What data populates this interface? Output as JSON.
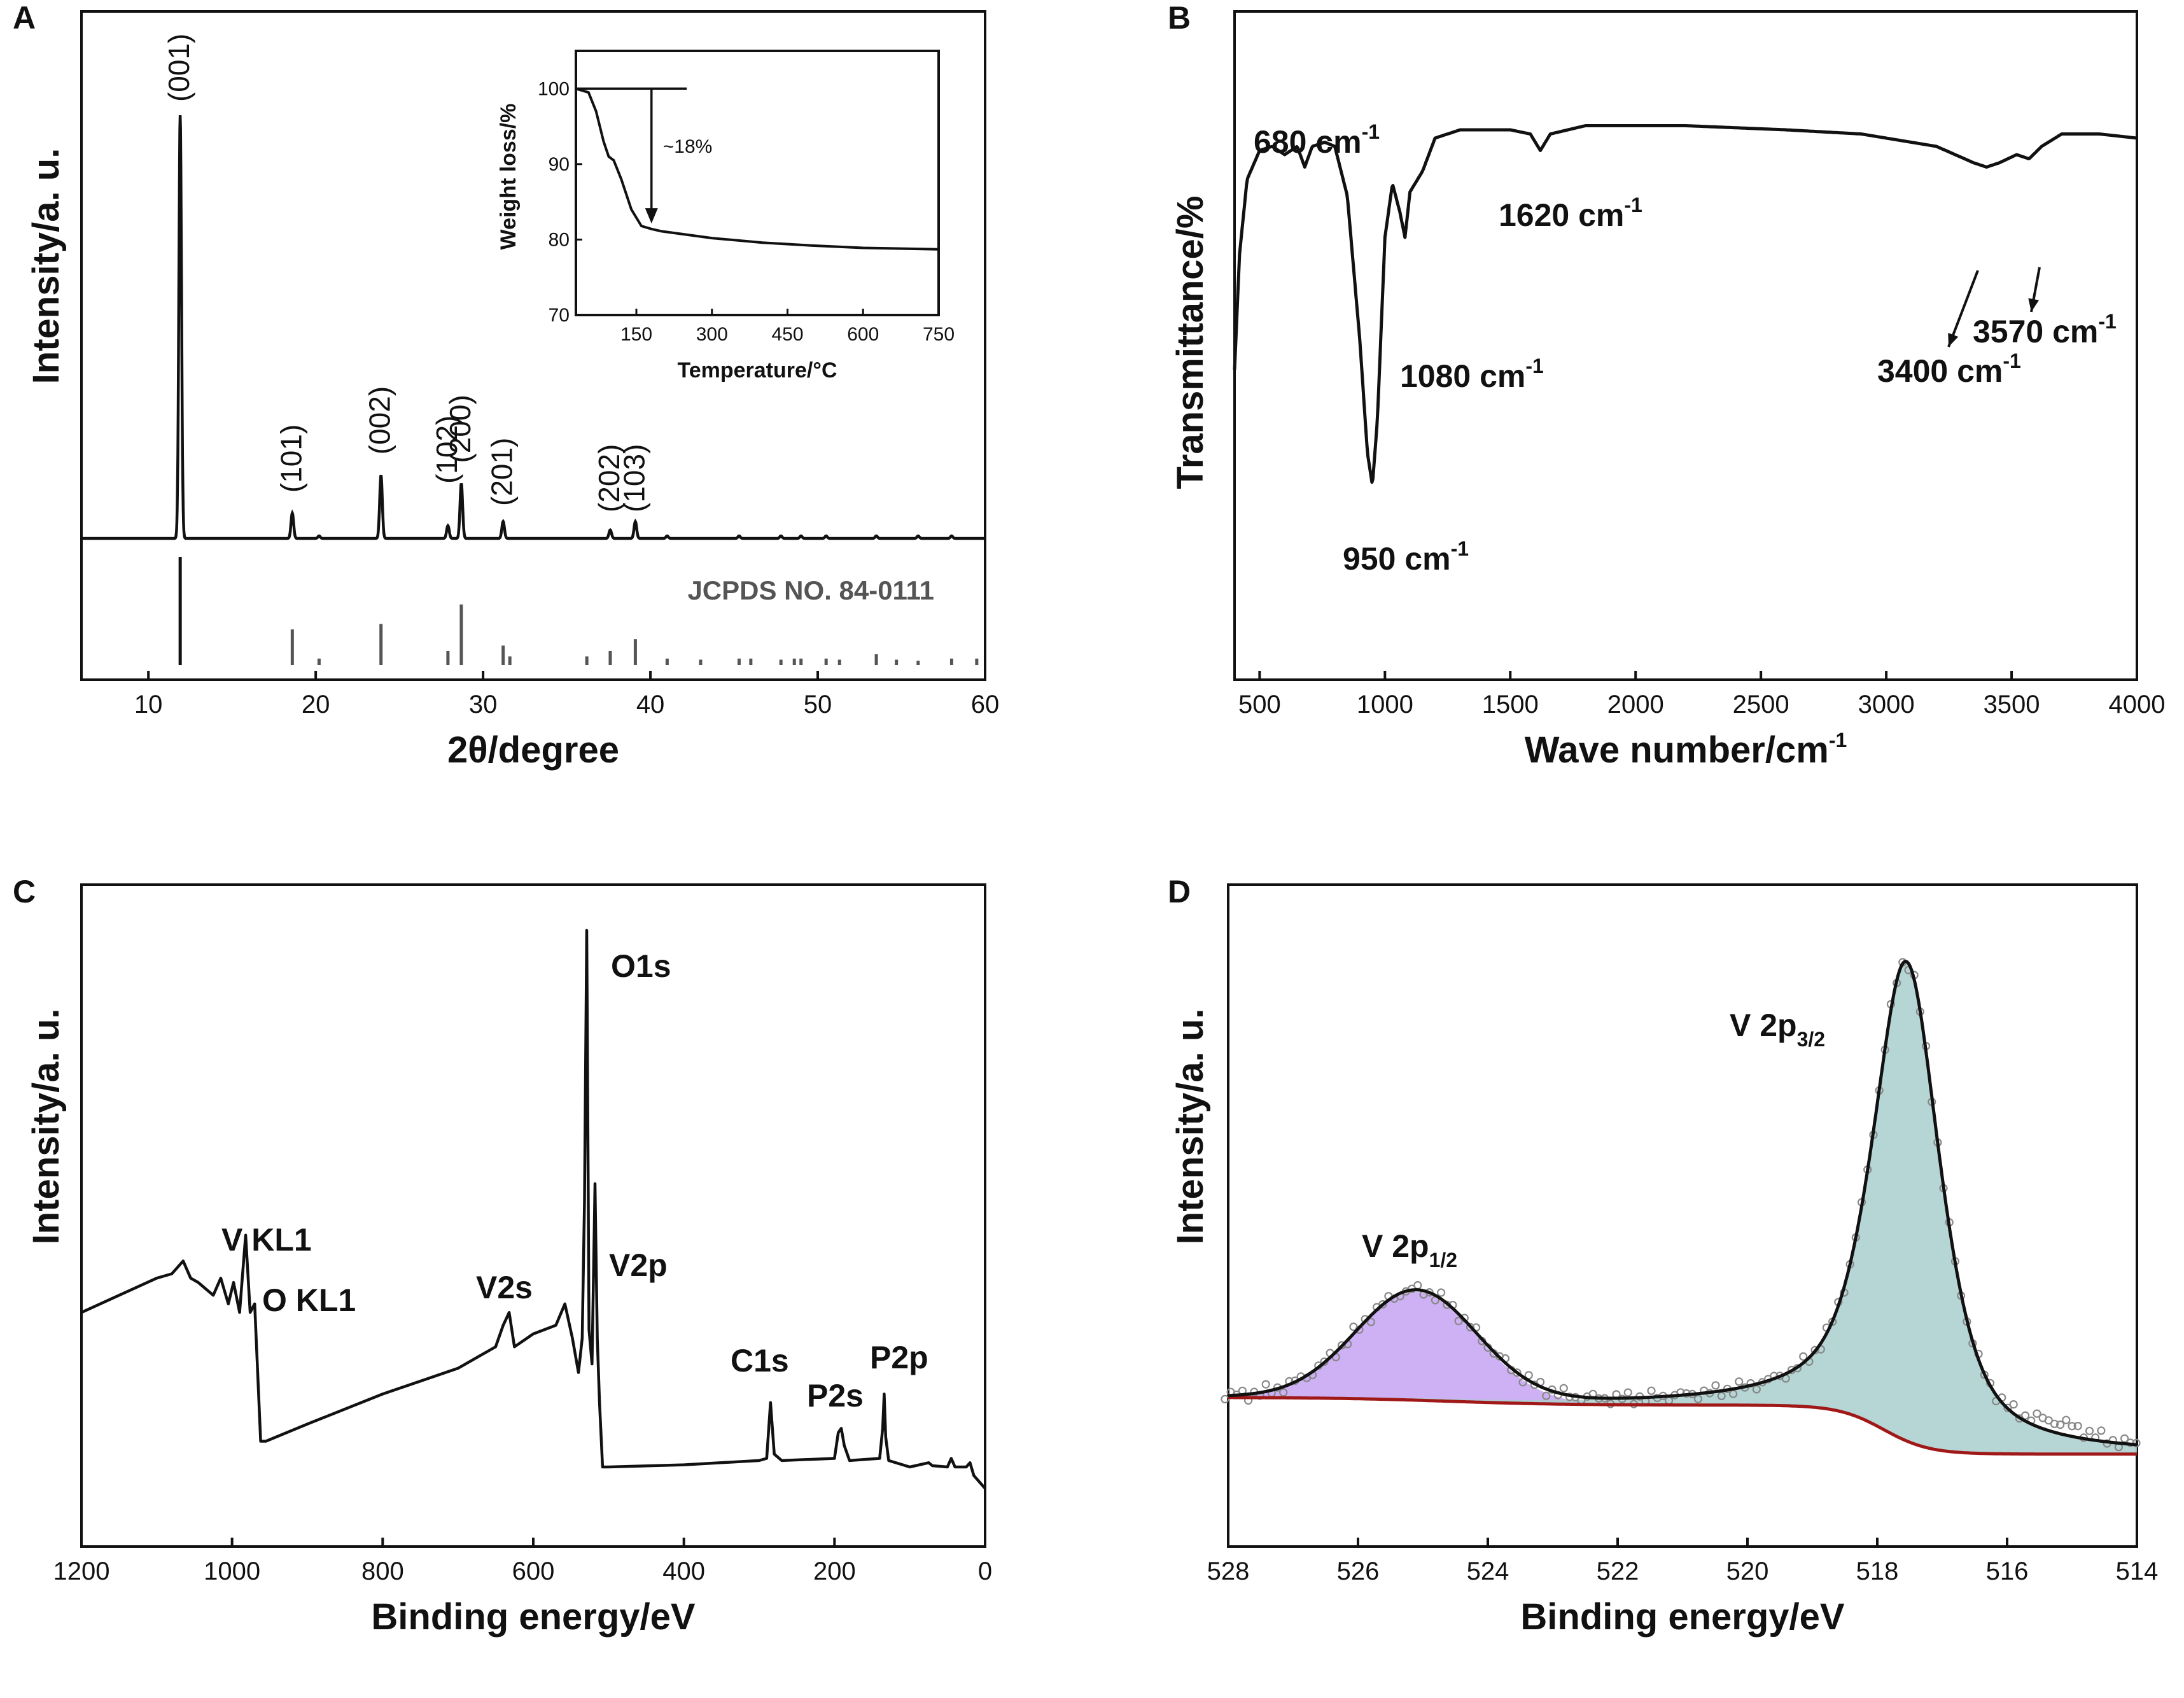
{
  "chart_data": [
    {
      "panel": "A",
      "type": "line",
      "xlabel": "2θ/degree",
      "ylabel": "Intensity/a. u.",
      "xlim": [
        6,
        60
      ],
      "xticks": [
        10,
        20,
        30,
        40,
        50,
        60
      ],
      "peaks": [
        {
          "x": 11.9,
          "h": 1.0,
          "label": "(001)"
        },
        {
          "x": 18.6,
          "h": 0.06,
          "label": "(101)"
        },
        {
          "x": 23.9,
          "h": 0.15,
          "label": "(002)"
        },
        {
          "x": 27.9,
          "h": 0.03,
          "label": "(102)"
        },
        {
          "x": 28.7,
          "h": 0.13,
          "label": "(200)"
        },
        {
          "x": 31.2,
          "h": 0.04,
          "label": "(201)"
        },
        {
          "x": 37.6,
          "h": 0.02,
          "label": "(202)"
        },
        {
          "x": 39.1,
          "h": 0.04,
          "label": "(103)"
        }
      ],
      "reference": {
        "label": "JCPDS NO. 84-0111",
        "lines": [
          {
            "x": 11.9,
            "h": 1.0
          },
          {
            "x": 18.6,
            "h": 0.33
          },
          {
            "x": 20.2,
            "h": 0.06
          },
          {
            "x": 23.9,
            "h": 0.38
          },
          {
            "x": 27.9,
            "h": 0.13
          },
          {
            "x": 28.7,
            "h": 0.56
          },
          {
            "x": 31.2,
            "h": 0.18
          },
          {
            "x": 31.6,
            "h": 0.08
          },
          {
            "x": 36.2,
            "h": 0.08
          },
          {
            "x": 37.6,
            "h": 0.13
          },
          {
            "x": 39.1,
            "h": 0.24
          },
          {
            "x": 41.0,
            "h": 0.06
          },
          {
            "x": 43.0,
            "h": 0.05
          },
          {
            "x": 45.3,
            "h": 0.06
          },
          {
            "x": 46.0,
            "h": 0.06
          },
          {
            "x": 47.8,
            "h": 0.05
          },
          {
            "x": 48.6,
            "h": 0.06
          },
          {
            "x": 49.0,
            "h": 0.06
          },
          {
            "x": 50.5,
            "h": 0.06
          },
          {
            "x": 51.3,
            "h": 0.05
          },
          {
            "x": 53.5,
            "h": 0.1
          },
          {
            "x": 54.7,
            "h": 0.05
          },
          {
            "x": 56.0,
            "h": 0.04
          },
          {
            "x": 58.0,
            "h": 0.06
          },
          {
            "x": 59.5,
            "h": 0.06
          }
        ]
      },
      "inset": {
        "type": "line",
        "xlabel": "Temperature/°C",
        "ylabel": "Weight loss/%",
        "xlim": [
          30,
          750
        ],
        "ylim": [
          70,
          105
        ],
        "xticks": [
          150,
          300,
          450,
          600,
          750
        ],
        "yticks": [
          70,
          80,
          90,
          100
        ],
        "annotation": "~18%",
        "x": [
          30,
          55,
          70,
          85,
          95,
          105,
          120,
          140,
          160,
          180,
          200,
          300,
          400,
          500,
          600,
          750
        ],
        "y": [
          100,
          99.5,
          97,
          93,
          91,
          90.5,
          88,
          84,
          81.8,
          81.4,
          81.1,
          80.2,
          79.6,
          79.2,
          78.9,
          78.7
        ]
      }
    },
    {
      "panel": "B",
      "type": "line",
      "xlabel": "Wave number/cm",
      "xlabel_sup": "-1",
      "ylabel": "Transmittance/%",
      "xlim": [
        400,
        4000
      ],
      "xticks": [
        500,
        1000,
        1500,
        2000,
        2500,
        3000,
        3500,
        4000
      ],
      "annotations": [
        {
          "text": "680 cm",
          "sup": "-1",
          "x": 680
        },
        {
          "text": "950 cm",
          "sup": "-1",
          "x": 950
        },
        {
          "text": "1080 cm",
          "sup": "-1",
          "x": 1080
        },
        {
          "text": "1620 cm",
          "sup": "-1",
          "x": 1620
        },
        {
          "text": "3400 cm",
          "sup": "-1",
          "x": 3400
        },
        {
          "text": "3570 cm",
          "sup": "-1",
          "x": 3570
        }
      ],
      "x": [
        400,
        420,
        450,
        500,
        550,
        600,
        650,
        680,
        710,
        760,
        800,
        850,
        900,
        930,
        950,
        970,
        1000,
        1030,
        1060,
        1080,
        1100,
        1150,
        1200,
        1300,
        1500,
        1580,
        1620,
        1660,
        1800,
        2200,
        2600,
        2900,
        3000,
        3200,
        3350,
        3400,
        3450,
        3520,
        3570,
        3620,
        3700,
        3850,
        4000
      ],
      "y": [
        38,
        66,
        84,
        91,
        92,
        90,
        92,
        87,
        92,
        93,
        92,
        80,
        45,
        18,
        10,
        26,
        70,
        83,
        76,
        70,
        81,
        86,
        94,
        96,
        96,
        95,
        91,
        95,
        97,
        97,
        96,
        95,
        94,
        92,
        88,
        87,
        88,
        90,
        89,
        92,
        95,
        95,
        94
      ]
    },
    {
      "panel": "C",
      "type": "line",
      "xlabel": "Binding energy/eV",
      "ylabel": "Intensity/a. u.",
      "xlim": [
        1200,
        0
      ],
      "xticks": [
        1200,
        1000,
        800,
        600,
        400,
        200,
        0
      ],
      "annotations": [
        {
          "text": "V KL1",
          "x": 1015
        },
        {
          "text": "O KL1",
          "x": 970
        },
        {
          "text": "V2s",
          "x": 630
        },
        {
          "text": "O1s",
          "x": 530
        },
        {
          "text": "V2p",
          "x": 517
        },
        {
          "text": "C1s",
          "x": 285
        },
        {
          "text": "P2s",
          "x": 191
        },
        {
          "text": "P2p",
          "x": 134
        }
      ],
      "x": [
        1200,
        1150,
        1100,
        1080,
        1065,
        1055,
        1045,
        1025,
        1015,
        1005,
        998,
        990,
        982,
        976,
        970,
        962,
        955,
        900,
        800,
        700,
        650,
        640,
        632,
        625,
        600,
        570,
        558,
        548,
        540,
        535,
        532,
        529,
        526,
        522,
        520,
        518,
        515,
        512,
        508,
        500,
        400,
        300,
        290,
        285,
        280,
        270,
        200,
        195,
        191,
        187,
        180,
        140,
        136,
        134,
        132,
        128,
        100,
        75,
        70,
        50,
        45,
        40,
        25,
        20,
        15,
        5,
        0
      ],
      "y": [
        36,
        40,
        44,
        45,
        48,
        44,
        43,
        40,
        44,
        38,
        43,
        36,
        54,
        36,
        38,
        6,
        6,
        10,
        17,
        23,
        28,
        33,
        36,
        28,
        31,
        33,
        38,
        30,
        22,
        30,
        62,
        125,
        32,
        24,
        45,
        66,
        30,
        15,
        0,
        0,
        0.5,
        1.5,
        2,
        15,
        3,
        1.5,
        2,
        8,
        9,
        5,
        1.5,
        2,
        9,
        17,
        7,
        1.5,
        0,
        1,
        0.3,
        0,
        2,
        0,
        0,
        1,
        -2,
        -4,
        -5
      ]
    },
    {
      "panel": "D",
      "type": "area",
      "xlabel": "Binding energy/eV",
      "ylabel": "Intensity/a. u.",
      "xlim": [
        528,
        514
      ],
      "xticks": [
        528,
        526,
        524,
        522,
        520,
        518,
        516,
        514
      ],
      "annotations": [
        {
          "text": "V 2p",
          "sub": "1/2",
          "x": 525.2
        },
        {
          "text": "V 2p",
          "sub": "3/2",
          "x": 517.6
        }
      ],
      "series": [
        {
          "name": "V 2p1/2 component",
          "color": "#c5a3f3",
          "center": 525.1,
          "fwhm": 2.2,
          "height": 21
        },
        {
          "name": "V 2p3/2 component",
          "color": "#a9cece",
          "center": 517.55,
          "fwhm": 1.25,
          "height": 93
        },
        {
          "name": "Background",
          "color": "#a01818"
        },
        {
          "name": "Envelope fit",
          "color": "#111111"
        },
        {
          "name": "Raw data",
          "color": "#888888"
        }
      ]
    }
  ]
}
